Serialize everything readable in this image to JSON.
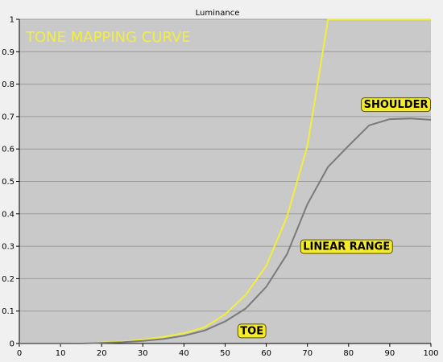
{
  "chart_data": {
    "type": "line",
    "title": "Luminance",
    "overlay_title": "TONE MAPPING CURVE",
    "xlabel": "",
    "ylabel": "",
    "xlim": [
      0,
      100
    ],
    "ylim": [
      0,
      1
    ],
    "x_ticks": [
      "0",
      "10",
      "20",
      "30",
      "40",
      "50",
      "60",
      "70",
      "80",
      "90",
      "100"
    ],
    "y_ticks": [
      "0",
      "0.1",
      "0.2",
      "0.3",
      "0.4",
      "0.5",
      "0.6",
      "0.7",
      "0.8",
      "0.9",
      "1"
    ],
    "grid": true,
    "legend": "none",
    "series": [
      {
        "color": "#f2ef3b",
        "x": [
          0,
          5,
          10,
          15,
          20,
          25,
          30,
          35,
          40,
          45,
          50,
          55,
          60,
          65,
          70,
          75,
          80,
          85,
          90,
          95,
          100
        ],
        "y": [
          0,
          0,
          0,
          0.001,
          0.003,
          0.006,
          0.012,
          0.02,
          0.032,
          0.05,
          0.09,
          0.15,
          0.24,
          0.39,
          0.61,
          1.0,
          1.0,
          1.0,
          1.0,
          1.0,
          1.0
        ]
      },
      {
        "color": "#7a7a7a",
        "x": [
          0,
          5,
          10,
          15,
          20,
          25,
          30,
          35,
          40,
          45,
          50,
          55,
          60,
          65,
          70,
          75,
          80,
          85,
          90,
          95,
          100
        ],
        "y": [
          0,
          0,
          0,
          0,
          0.002,
          0.004,
          0.008,
          0.014,
          0.024,
          0.04,
          0.068,
          0.108,
          0.175,
          0.275,
          0.43,
          0.545,
          0.61,
          0.673,
          0.692,
          0.694,
          0.69
        ]
      }
    ],
    "annotations": [
      {
        "text": "SHOULDER",
        "x": 91.5,
        "y": 0.738
      },
      {
        "text": "LINEAR RANGE",
        "x": 79.5,
        "y": 0.3
      },
      {
        "text": "TOE",
        "x": 56.5,
        "y": 0.04
      }
    ],
    "colors": {
      "plot_bg": "#c9c9c9",
      "page_bg": "#f0f0f0",
      "grid": "#9a9a9a",
      "title_overlay": "#f2ef3b",
      "annotation_bg": "#f5eb2a",
      "annotation_border": "#55500a"
    }
  }
}
